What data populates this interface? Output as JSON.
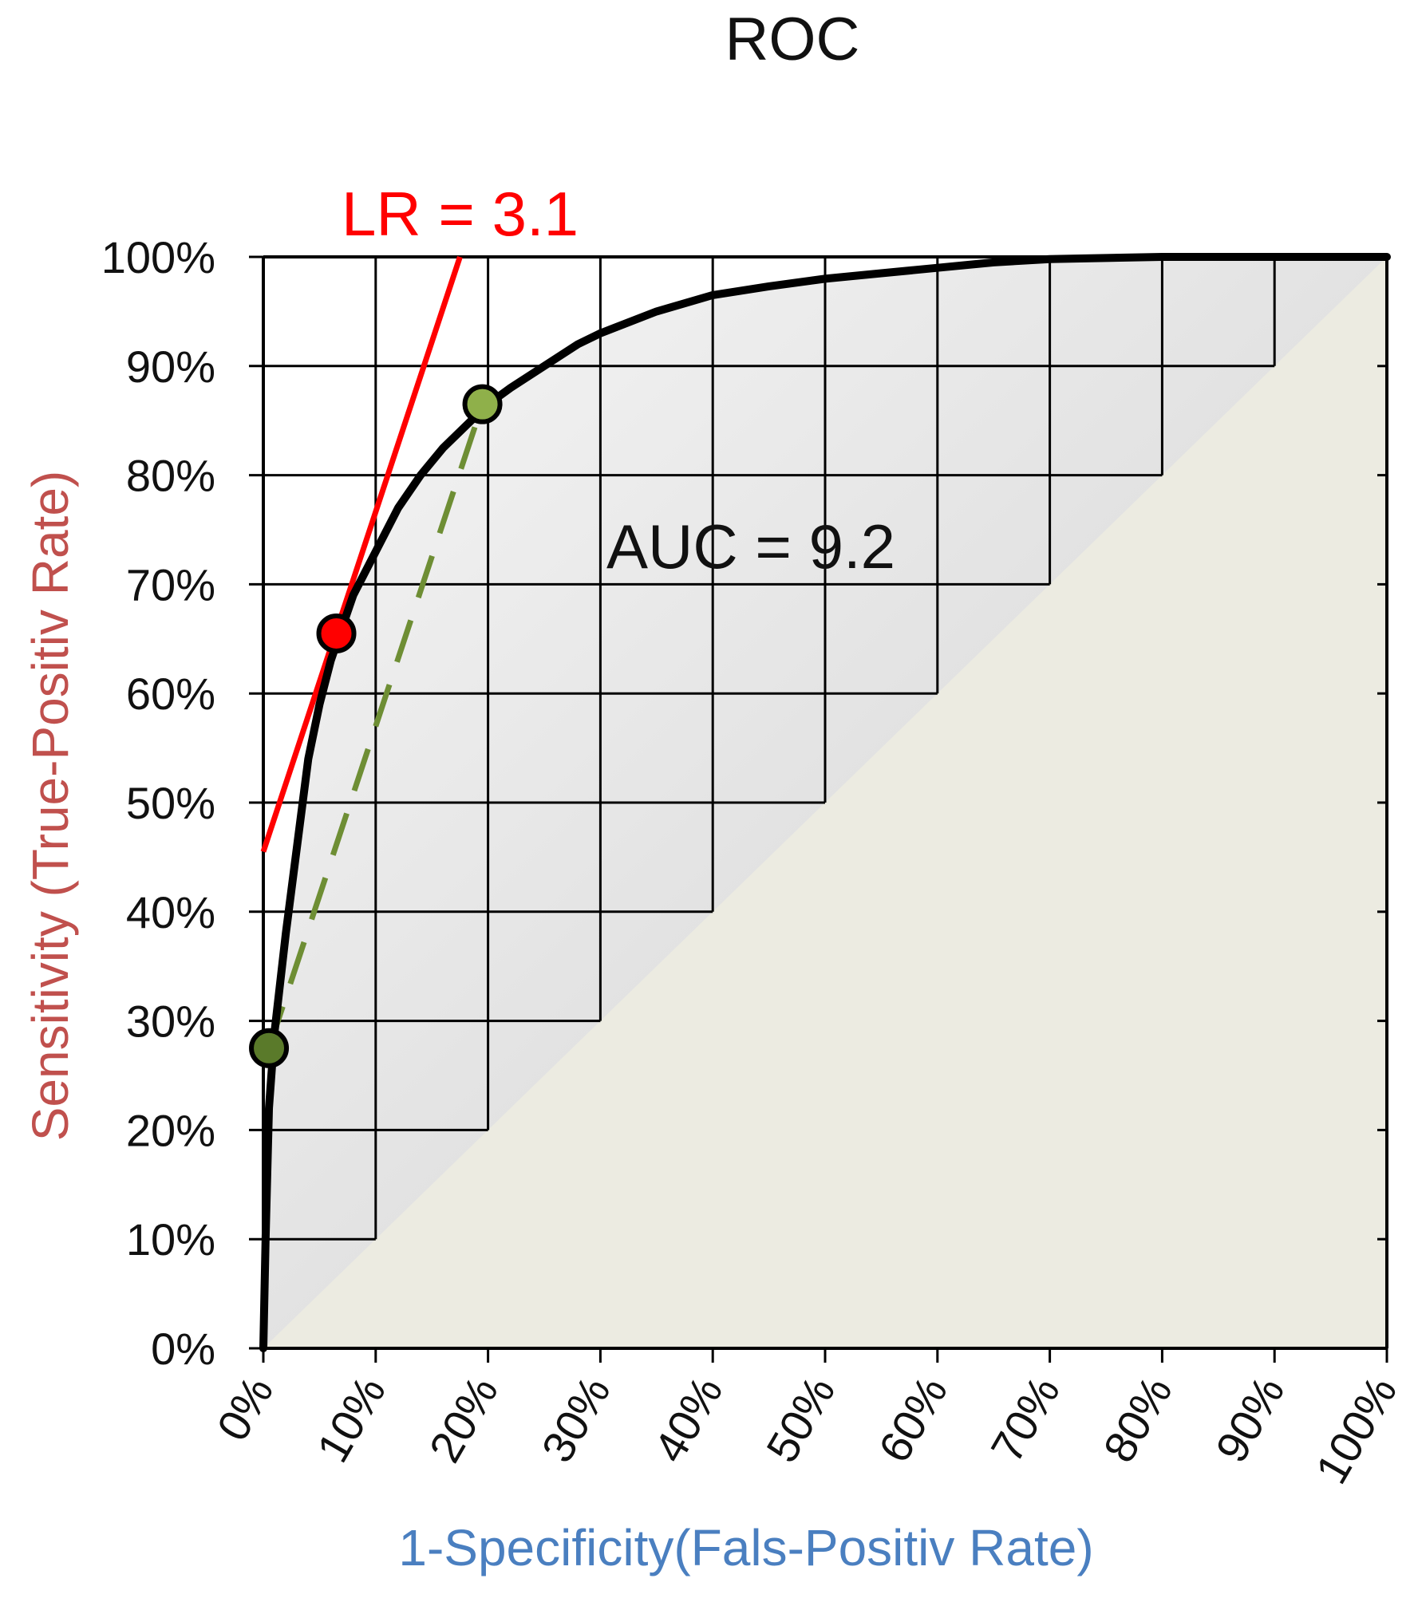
{
  "chart_data": {
    "type": "line",
    "title": "ROC",
    "xlabel": "1-Specificity(Fals-Positiv Rate)",
    "ylabel": "Sensitivity (True-Positiv Rate)",
    "xlim": [
      0,
      100
    ],
    "ylim": [
      0,
      100
    ],
    "grid": true,
    "x_ticks": [
      "0%",
      "10%",
      "20%",
      "30%",
      "40%",
      "50%",
      "60%",
      "70%",
      "80%",
      "90%",
      "100%"
    ],
    "y_ticks": [
      "0%",
      "10%",
      "20%",
      "30%",
      "40%",
      "50%",
      "60%",
      "70%",
      "80%",
      "90%",
      "100%"
    ],
    "series": [
      {
        "color": "#000000",
        "x": [
          0,
          0.2,
          0.5,
          1,
          2,
          3,
          4,
          5,
          6,
          7,
          8,
          10,
          12,
          14,
          16,
          18,
          20,
          22,
          25,
          28,
          30,
          35,
          40,
          45,
          50,
          55,
          60,
          65,
          70,
          80,
          90,
          100
        ],
        "y": [
          0,
          10,
          22,
          29,
          38,
          46,
          54,
          59,
          63,
          66,
          69,
          73,
          77,
          80,
          82.5,
          84.5,
          86.5,
          88,
          90,
          92,
          93,
          95,
          96.5,
          97.3,
          98,
          98.5,
          99,
          99.5,
          99.8,
          100,
          100,
          100
        ]
      }
    ],
    "tangent_line": {
      "color": "#ff0000",
      "x": [
        0,
        17.5
      ],
      "y": [
        45.5,
        100
      ]
    },
    "secant_line": {
      "color": "#6e8e34",
      "style": "dashed",
      "x": [
        0.5,
        19.5
      ],
      "y": [
        27.5,
        86.5
      ]
    },
    "points": [
      {
        "x": 6.5,
        "y": 65.5,
        "color": "#ff0000"
      },
      {
        "x": 19.5,
        "y": 86.5,
        "color": "#8fb04a"
      },
      {
        "x": 0.5,
        "y": 27.5,
        "color": "#5a7a2a"
      }
    ],
    "chance_region_color": "#ecebe1",
    "annotations": [
      {
        "text": "LR = 3.1",
        "color": "#ff0000"
      },
      {
        "text": "AUC = 9.2",
        "color": "#111111"
      }
    ],
    "colors": {
      "xlabel": "#4a7fc0",
      "ylabel": "#c0504d",
      "tangent": "#ff0000"
    }
  }
}
